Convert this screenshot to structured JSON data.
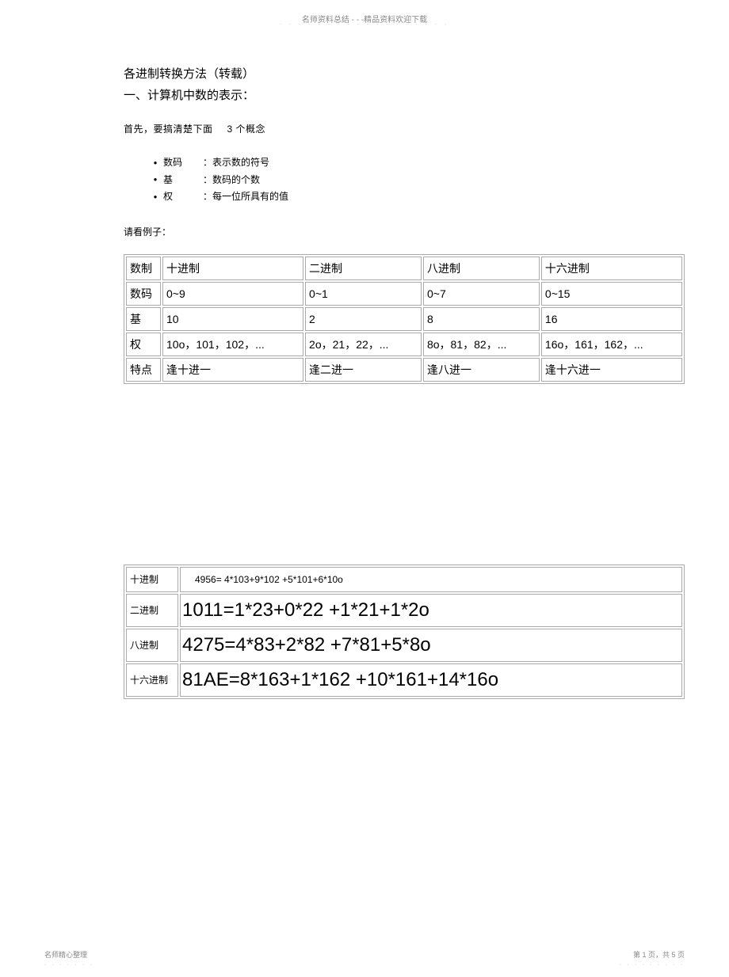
{
  "header": {
    "text": "名师资料总结 - - -精品资料欢迎下载",
    "dots": "- - - - - - - - - - - - - - - - - -"
  },
  "title": "各进制转换方法（转载）",
  "subtitle": "一、计算机中数的表示：",
  "intro_prefix": "首先，要搞清楚下面",
  "intro_suffix": "3 个概念",
  "bullets": [
    {
      "term": "数码",
      "desc": "：表示数的符号"
    },
    {
      "term": "基",
      "desc": "：数码的个数"
    },
    {
      "term": "权",
      "desc": "：每一位所具有的值"
    }
  ],
  "see_example": "请看例子：",
  "table1": {
    "rows": [
      [
        "数制",
        "十进制",
        "二进制",
        "八进制",
        "十六进制"
      ],
      [
        "数码",
        "0~9",
        "0~1",
        "0~7",
        "0~15"
      ],
      [
        "基",
        "10",
        "2",
        "8",
        "16"
      ],
      [
        "权",
        "10o，101，102，...",
        "2o，21，22，...",
        "8o，81，82，...",
        "16o，161，162，..."
      ],
      [
        "特点",
        "逢十进一",
        "逢二进一",
        "逢八进一",
        "逢十六进一"
      ]
    ]
  },
  "table2": {
    "rows": [
      {
        "label": "十进制",
        "value": "4956= 4*103+9*102 +5*101+6*10o",
        "style": "small"
      },
      {
        "label": "二进制",
        "value": "1011=1*23+0*22 +1*21+1*2o",
        "style": "big"
      },
      {
        "label": "八进制",
        "value": "4275=4*83+2*82 +7*81+5*8o",
        "style": "big"
      },
      {
        "label": "十六进制",
        "value": "81AE=8*163+1*162 +10*161+14*16o",
        "style": "big"
      }
    ]
  },
  "footer": {
    "left": "名师精心整理",
    "left_dots": "- - - - - - -",
    "right": "第 1 页，共 5 页",
    "right_dots": "- - - - - - - - -"
  }
}
